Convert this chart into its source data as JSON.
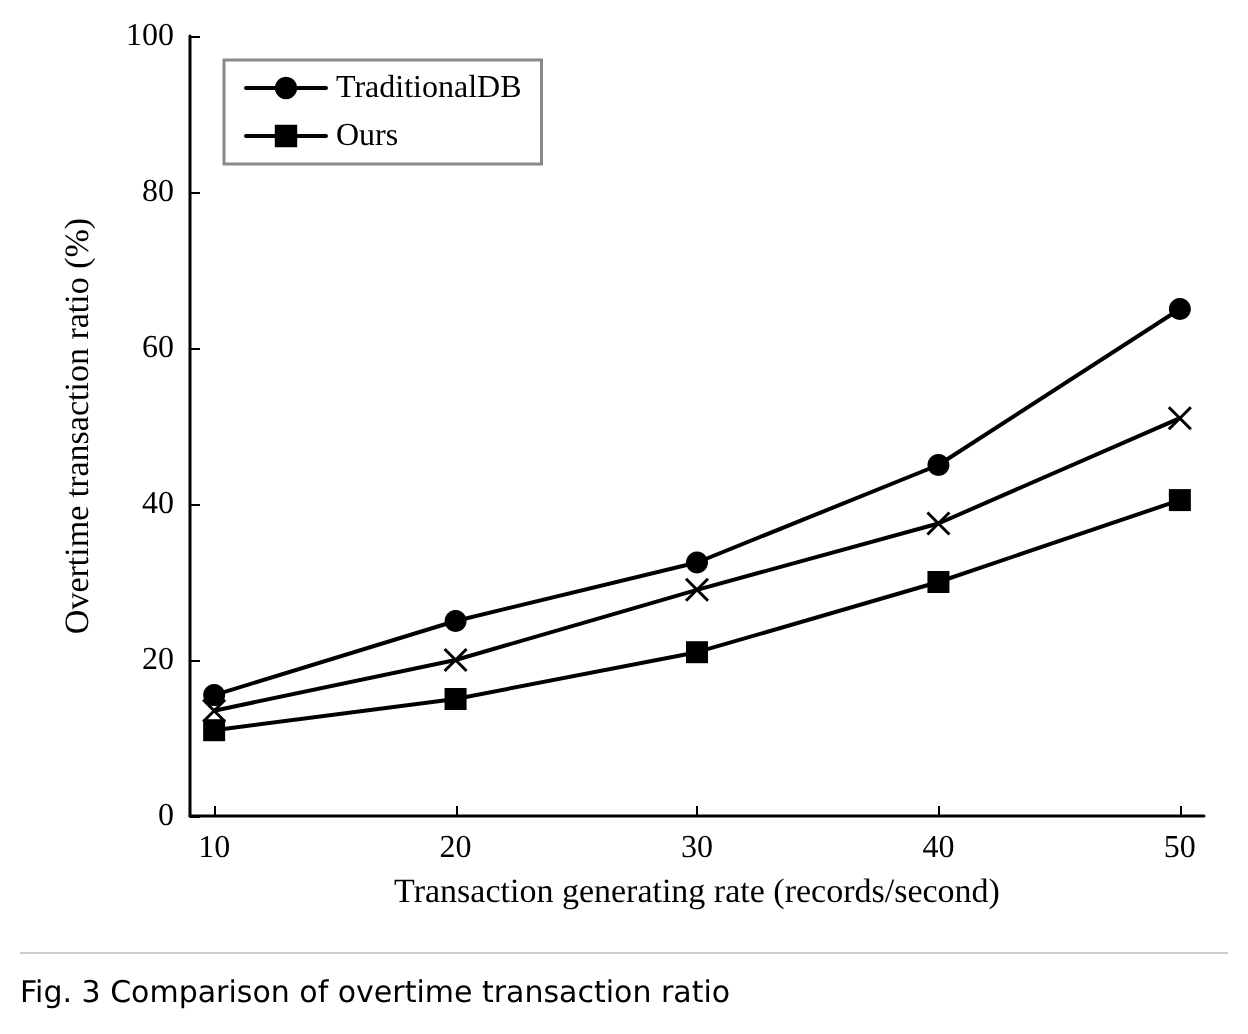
{
  "chart_data": {
    "type": "line",
    "xlabel": "Transaction generating rate (records/second)",
    "ylabel": "Overtime transaction ratio (%)",
    "x": [
      10,
      20,
      30,
      40,
      50
    ],
    "series": [
      {
        "name": "TraditionalDB",
        "color": "#000000",
        "marker": "circle",
        "values": [
          15.5,
          25,
          32.5,
          45,
          65
        ]
      },
      {
        "color": "#000000",
        "marker": "cross",
        "values": [
          13.5,
          20,
          29,
          37.5,
          51
        ]
      },
      {
        "name": "Ours",
        "color": "#000000",
        "marker": "square",
        "values": [
          11,
          15,
          21,
          30,
          40.5
        ]
      }
    ],
    "xlim": [
      9,
      51
    ],
    "xticks": [
      10,
      20,
      30,
      40,
      50
    ],
    "ylim": [
      0,
      100
    ],
    "yticks": [
      0,
      20,
      40,
      60,
      80,
      100
    ],
    "grid": false,
    "legend": "top left",
    "line_style": "solid",
    "annotations": [
      "Fig. 3 Comparison of overtime transaction ratio"
    ]
  }
}
